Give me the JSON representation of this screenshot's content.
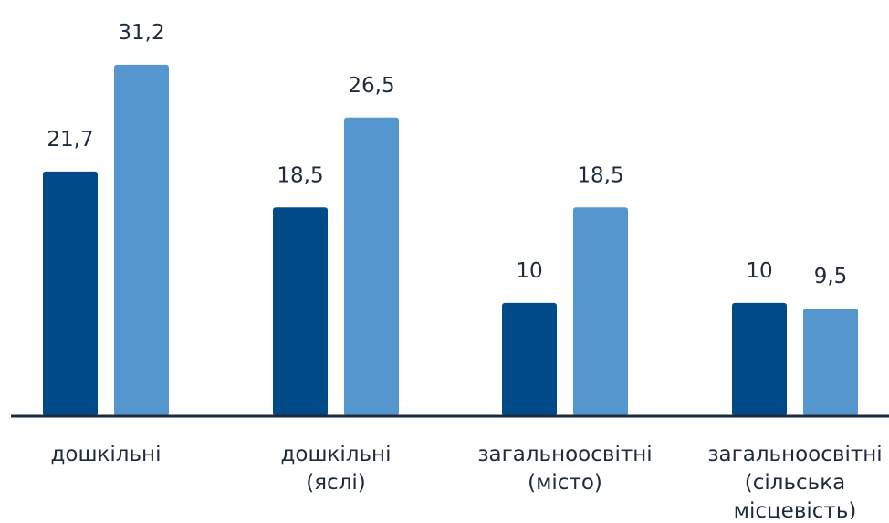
{
  "chart_data": {
    "type": "bar",
    "title": "",
    "xlabel": "",
    "ylabel": "",
    "ylim": [
      0,
      32
    ],
    "grid": false,
    "legend": "none",
    "categories": [
      [
        "дошкільні"
      ],
      [
        "дошкільні",
        "(яслі)"
      ],
      [
        "загальноосвітні",
        "(місто)"
      ],
      [
        "загальноосвітні",
        "(сільська",
        "місцевість)"
      ]
    ],
    "series": [
      {
        "color": "#004b87",
        "values": [
          21.7,
          18.5,
          10,
          10
        ],
        "labels": [
          "21,7",
          "18,5",
          "10",
          "10"
        ]
      },
      {
        "color": "#5596cf",
        "values": [
          31.2,
          26.5,
          18.5,
          9.5
        ],
        "labels": [
          "31,2",
          "26,5",
          "18,5",
          "9,5"
        ]
      }
    ],
    "axis_color": "#1e2b3c"
  }
}
